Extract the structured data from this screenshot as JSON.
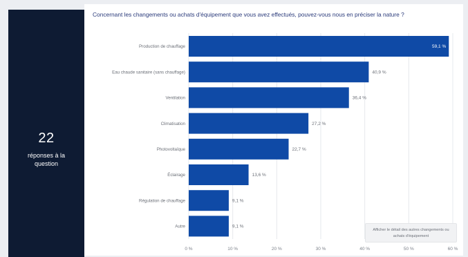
{
  "sidebar": {
    "count": "22",
    "label": "réponses à la question"
  },
  "question": "Concernant les changements ou achats d'équipement que vous avez effectués, pouvez-vous nous en préciser la nature ?",
  "tooltip": "Afficher le détail des autres changements ou achats d'équipement",
  "colors": {
    "bar": "#0f4aa6",
    "sidebar": "#0e1b33",
    "question": "#2a3a7a"
  },
  "chart_data": {
    "type": "bar",
    "orientation": "horizontal",
    "categories": [
      "Production de chauffage",
      "Eau chaude sanitaire (sans chauffage)",
      "Ventilation",
      "Climatisation",
      "Photovoltaïque",
      "Éclairage",
      "Régulation de chauffage",
      "Autre"
    ],
    "values": [
      59.1,
      40.9,
      36.4,
      27.2,
      22.7,
      13.6,
      9.1,
      9.1
    ],
    "value_labels": [
      "59,1 %",
      "40,9 %",
      "36,4 %",
      "27,2 %",
      "22,7 %",
      "13,6 %",
      "9,1 %",
      "9,1 %"
    ],
    "xlim": [
      0,
      60
    ],
    "xticks": [
      0,
      10,
      20,
      30,
      40,
      50,
      60
    ],
    "xtick_labels": [
      "0 %",
      "10 %",
      "20 %",
      "30 %",
      "40 %",
      "50 %",
      "60 %"
    ],
    "grid": true,
    "legend": "none"
  }
}
